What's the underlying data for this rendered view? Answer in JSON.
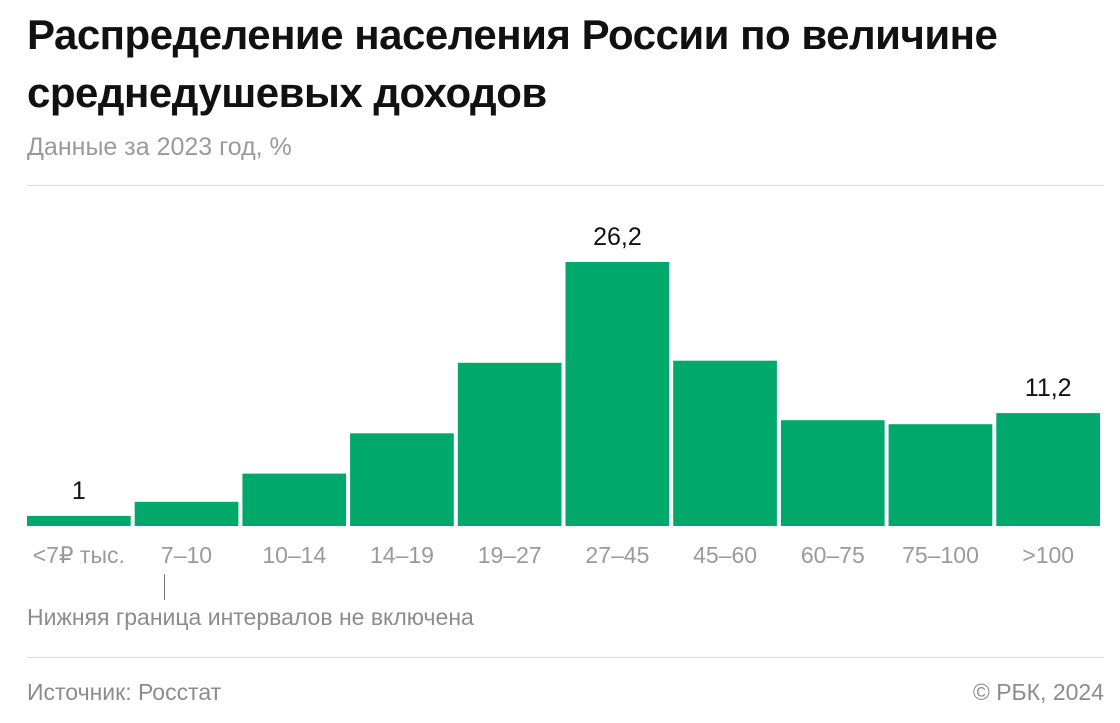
{
  "header": {
    "title": "Распределение населения России по величине среднедушевых доходов",
    "subtitle": "Данные за 2023 год, %"
  },
  "footer": {
    "note": "Нижняя граница интервалов не включена",
    "source": "Источник: Росстат",
    "copyright": "© РБК, 2024"
  },
  "colors": {
    "bar": "#00a86b",
    "tick_label": "#9a9a9a",
    "value_label": "#111111"
  },
  "chart_data": {
    "type": "bar",
    "title": "Распределение населения России по величине среднедушевых доходов",
    "subtitle": "Данные за 2023 год, %",
    "categories": [
      "<7₽ тыс.",
      "7–10",
      "10–14",
      "14–19",
      "19–27",
      "27–45",
      "45–60",
      "60–75",
      "75–100",
      ">100"
    ],
    "values": [
      1,
      2.4,
      5.2,
      9.2,
      16.2,
      26.2,
      16.4,
      10.5,
      10.1,
      11.2
    ],
    "data_labels": [
      "1",
      "",
      "",
      "",
      "",
      "26,2",
      "",
      "",
      "",
      "11,2"
    ],
    "ylim": [
      0,
      26.2
    ],
    "grid": false,
    "legend": "none"
  }
}
